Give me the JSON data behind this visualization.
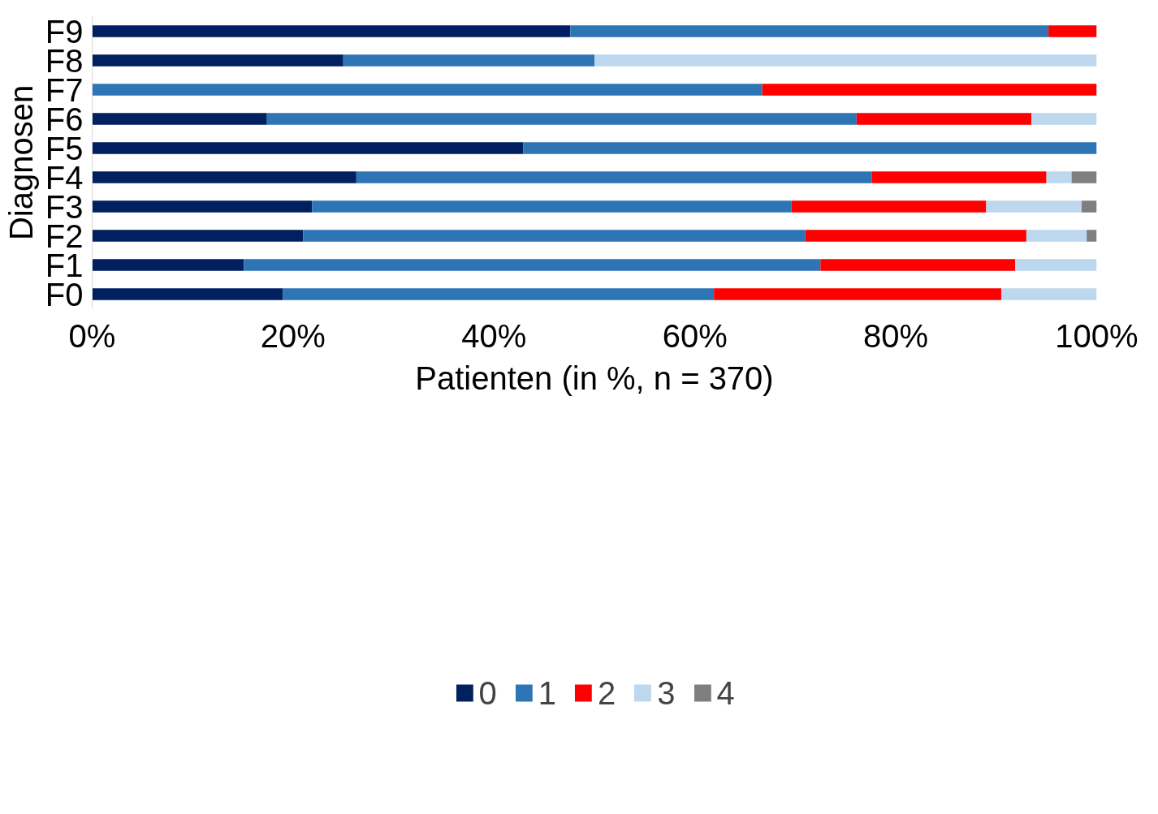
{
  "chart_data": {
    "type": "bar",
    "orientation": "horizontal",
    "stacked": true,
    "categories": [
      "F9",
      "F8",
      "F7",
      "F6",
      "F5",
      "F4",
      "F3",
      "F2",
      "F1",
      "F0"
    ],
    "series": [
      {
        "name": "0",
        "color": "#002060",
        "values": [
          47.6,
          25.0,
          null,
          17.4,
          42.9,
          26.3,
          21.9,
          21.0,
          15.1,
          19.0
        ]
      },
      {
        "name": "1",
        "color": "#2e75b6",
        "values": [
          47.6,
          25.0,
          66.7,
          58.7,
          57.1,
          51.3,
          47.7,
          50.0,
          57.4,
          42.9
        ]
      },
      {
        "name": "2",
        "color": "#ff0000",
        "values": [
          4.8,
          null,
          33.3,
          17.4,
          null,
          17.4,
          19.4,
          22.0,
          19.4,
          28.6
        ]
      },
      {
        "name": "3",
        "color": "#bdd7ee",
        "values": [
          null,
          50.0,
          null,
          6.5,
          null,
          2.5,
          9.5,
          6.0,
          8.1,
          9.5
        ]
      },
      {
        "name": "4",
        "color": "#7f7f7f",
        "values": [
          null,
          null,
          null,
          null,
          null,
          2.5,
          1.5,
          1.0,
          null,
          null
        ]
      }
    ],
    "xlim": [
      0,
      100
    ],
    "xticks": [
      {
        "value": 0,
        "label": "0%"
      },
      {
        "value": 20,
        "label": "20%"
      },
      {
        "value": 40,
        "label": "40%"
      },
      {
        "value": 60,
        "label": "60%"
      },
      {
        "value": 80,
        "label": "80%"
      },
      {
        "value": 100,
        "label": "100%"
      }
    ],
    "xlabel": "Patienten (in %, n = 370)",
    "ylabel": "Diagnosen",
    "grid": false,
    "legend": "bottom"
  }
}
